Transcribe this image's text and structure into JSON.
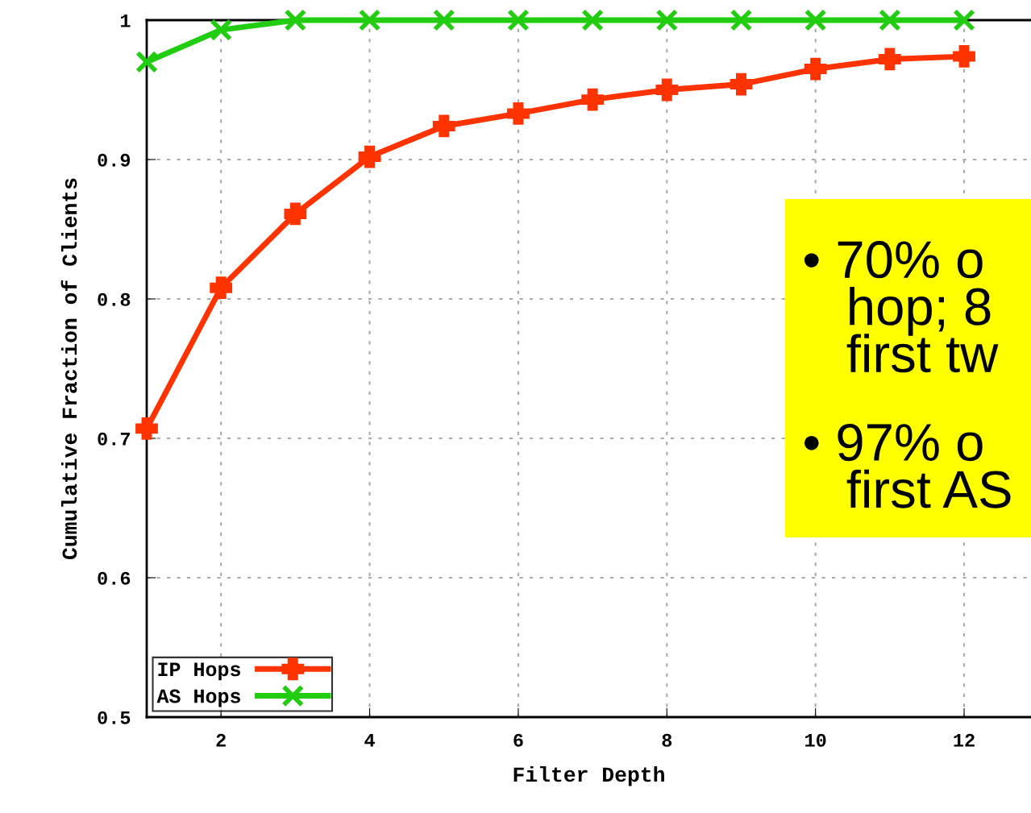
{
  "chart_data": {
    "type": "line",
    "xlabel": "Filter Depth",
    "ylabel": "Cumulative Fraction of Clients",
    "x": [
      1,
      2,
      3,
      4,
      5,
      6,
      7,
      8,
      9,
      10,
      11,
      12
    ],
    "series": [
      {
        "name": "IP Hops",
        "color": "#ff3300",
        "marker": "cross",
        "values": [
          0.707,
          0.808,
          0.861,
          0.902,
          0.924,
          0.933,
          0.943,
          0.95,
          0.954,
          0.965,
          0.972,
          0.974
        ]
      },
      {
        "name": "AS Hops",
        "color": "#22cc11",
        "marker": "x",
        "values": [
          0.97,
          0.993,
          1,
          1,
          1,
          1,
          1,
          1,
          1,
          1,
          1,
          1
        ]
      }
    ],
    "xlim": [
      1,
      12.9
    ],
    "ylim": [
      0.5,
      1
    ],
    "xticks": [
      2,
      4,
      6,
      8,
      10,
      12
    ],
    "yticks": [
      {
        "value": 0.5,
        "label": "0.5"
      },
      {
        "value": 0.6,
        "label": "0.6"
      },
      {
        "value": 0.7,
        "label": "0.7"
      },
      {
        "value": 0.8,
        "label": "0.8"
      },
      {
        "value": 0.9,
        "label": "0.9"
      },
      {
        "value": 1,
        "label": "1"
      }
    ],
    "grid": true,
    "line_style": "solid",
    "legend": "bottom left",
    "annotations": [
      "• 70% o\n   hop; 8\n   first tw",
      "• 97% o\n   first AS"
    ]
  }
}
